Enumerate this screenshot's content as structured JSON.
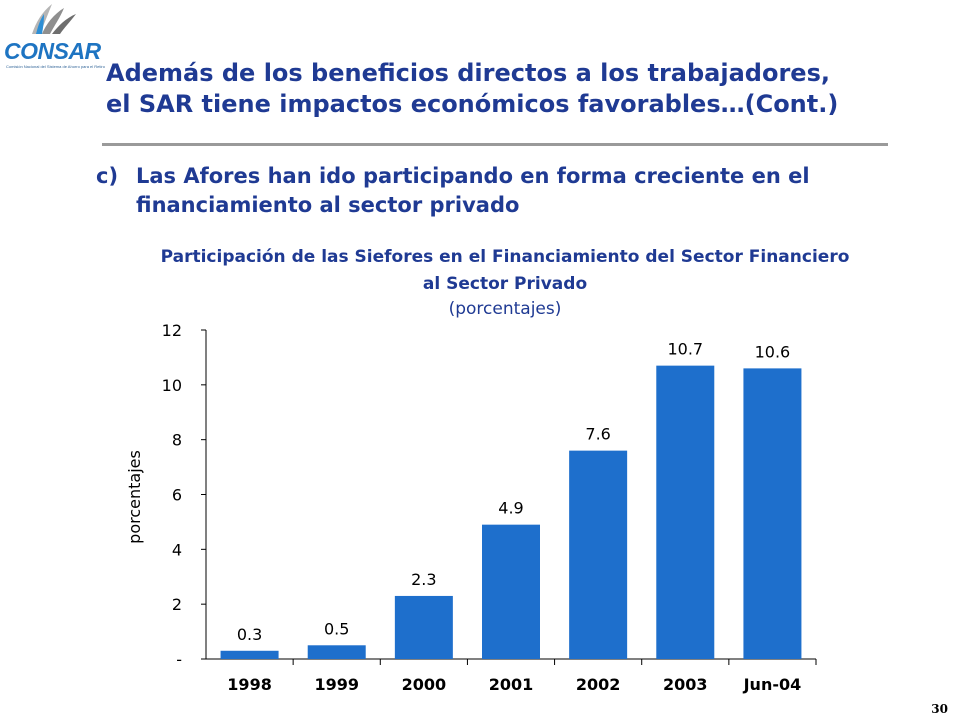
{
  "slide": {
    "logo_text": "CONSAR",
    "logo_subtitle": "Comisión Nacional del Sistema de Ahorro para el Retiro",
    "title_line1": "Además de los beneficios directos a los trabajadores,",
    "title_line2": "el SAR tiene impactos económicos favorables…(Cont.)",
    "bullet_marker": "c)",
    "bullet_text": "Las Afores han ido participando en forma creciente en el financiamiento al sector privado",
    "page_number": "30"
  },
  "colors": {
    "title": "#1F3A93",
    "bar": "#1E6FCC",
    "rule": "#9A9A9A",
    "logo": "#1E74C2"
  },
  "chart_data": {
    "type": "bar",
    "title": "Participación de las Siefores en el Financiamiento del Sector Financiero al Sector Privado",
    "subtitle": "(porcentajes)",
    "ylabel": "porcentajes",
    "xlabel": "",
    "categories": [
      "1998",
      "1999",
      "2000",
      "2001",
      "2002",
      "2003",
      "Jun-04"
    ],
    "values": [
      0.3,
      0.5,
      2.3,
      4.9,
      7.6,
      10.7,
      10.6
    ],
    "data_labels": [
      "0.3",
      "0.5",
      "2.3",
      "4.9",
      "7.6",
      "10.7",
      "10.6"
    ],
    "ylim": [
      0,
      12
    ],
    "yticks": [
      0,
      2,
      4,
      6,
      8,
      10,
      12
    ],
    "ytick_labels": [
      "-",
      "2",
      "4",
      "6",
      "8",
      "10",
      "12"
    ],
    "grid": false,
    "legend": "none"
  }
}
